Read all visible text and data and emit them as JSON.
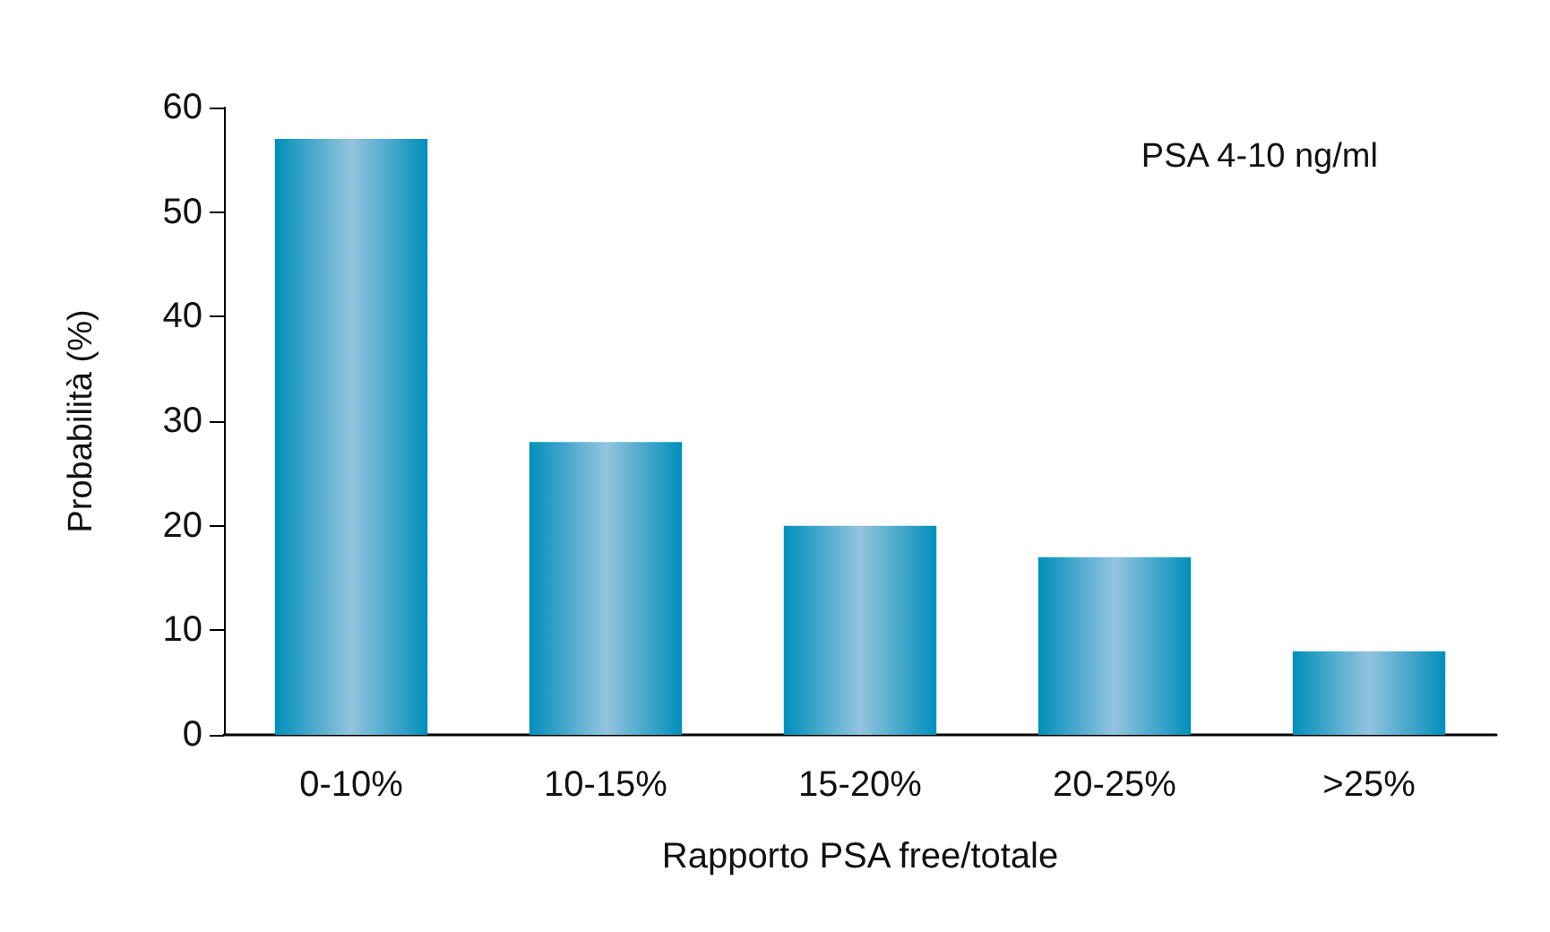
{
  "chart_data": {
    "type": "bar",
    "xlabel": "Rapporto PSA free/totale",
    "ylabel": "Probabilità (%)",
    "categories": [
      "0-10%",
      "10-15%",
      "15-20%",
      "20-25%",
      ">25%"
    ],
    "values": [
      57,
      28,
      20,
      17,
      8
    ],
    "color": "#008fba",
    "ylim": [
      0,
      60
    ],
    "yticks": [
      0,
      10,
      20,
      30,
      40,
      50,
      60
    ],
    "grid": false,
    "annotations": [
      "PSA 4-10 ng/ml"
    ]
  }
}
